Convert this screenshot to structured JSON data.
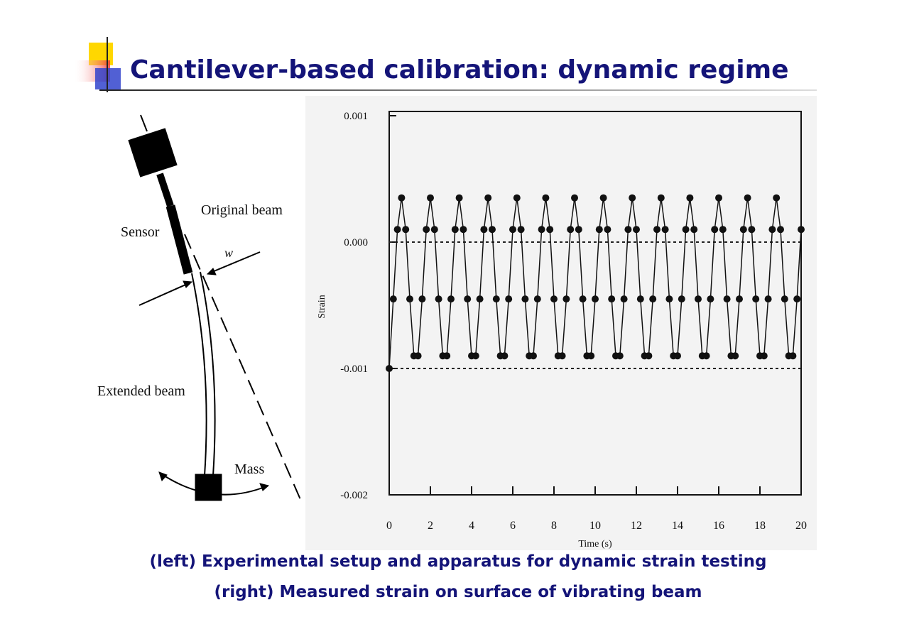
{
  "header": {
    "title": "Cantilever-based calibration: dynamic regime"
  },
  "diagram": {
    "labels": {
      "original_beam": "Original beam",
      "sensor": "Sensor",
      "w": "w",
      "extended_beam": "Extended beam",
      "mass": "Mass"
    }
  },
  "chart_data": {
    "type": "line",
    "y_label": "Strain",
    "x_label": "Time (s)",
    "xlim": [
      0,
      20
    ],
    "xticks": [
      0,
      2,
      4,
      6,
      8,
      10,
      12,
      14,
      16,
      18,
      20
    ],
    "ylim": [
      -0.002,
      0.001
    ],
    "yticks": [
      -0.002,
      -0.001,
      {
        "value": 0,
        "label": "0.000"
      },
      0.001
    ],
    "hlines": [
      0,
      -0.001
    ],
    "color": "#111111",
    "x": [
      0,
      0.2,
      0.4,
      0.6,
      0.8,
      1,
      1.2,
      1.4,
      1.6,
      1.8,
      2,
      2.2,
      2.4,
      2.6,
      2.8,
      3,
      3.2,
      3.4,
      3.6,
      3.8,
      4,
      4.2,
      4.4,
      4.6,
      4.8,
      5,
      5.2,
      5.4,
      5.6,
      5.8,
      6,
      6.2,
      6.4,
      6.6,
      6.8,
      7,
      7.2,
      7.4,
      7.6,
      7.8,
      8,
      8.2,
      8.4,
      8.6,
      8.8,
      9,
      9.2,
      9.4,
      9.6,
      9.8,
      10,
      10.2,
      10.4,
      10.6,
      10.8,
      11,
      11.2,
      11.4,
      11.6,
      11.8,
      12,
      12.2,
      12.4,
      12.6,
      12.8,
      13,
      13.2,
      13.4,
      13.6,
      13.8,
      14,
      14.2,
      14.4,
      14.6,
      14.8,
      15,
      15.2,
      15.4,
      15.6,
      15.8,
      16,
      16.2,
      16.4,
      16.6,
      16.8,
      17,
      17.2,
      17.4,
      17.6,
      17.8,
      18,
      18.2,
      18.4,
      18.6,
      18.8,
      19,
      19.2,
      19.4,
      19.6,
      19.8,
      20
    ],
    "values": [
      -0.001,
      -0.00045,
      0.0001,
      0.00035,
      0.0001,
      -0.00045,
      -0.0009,
      -0.0009,
      -0.00045,
      0.0001,
      0.00035,
      0.0001,
      -0.00045,
      -0.0009,
      -0.0009,
      -0.00045,
      0.0001,
      0.00035,
      0.0001,
      -0.00045,
      -0.0009,
      -0.0009,
      -0.00045,
      0.0001,
      0.00035,
      0.0001,
      -0.00045,
      -0.0009,
      -0.0009,
      -0.00045,
      0.0001,
      0.00035,
      0.0001,
      -0.00045,
      -0.0009,
      -0.0009,
      -0.00045,
      0.0001,
      0.00035,
      0.0001,
      -0.00045,
      -0.0009,
      -0.0009,
      -0.00045,
      0.0001,
      0.00035,
      0.0001,
      -0.00045,
      -0.0009,
      -0.0009,
      -0.00045,
      0.0001,
      0.00035,
      0.0001,
      -0.00045,
      -0.0009,
      -0.0009,
      -0.00045,
      0.0001,
      0.00035,
      0.0001,
      -0.00045,
      -0.0009,
      -0.0009,
      -0.00045,
      0.0001,
      0.00035,
      0.0001,
      -0.00045,
      -0.0009,
      -0.0009,
      -0.00045,
      0.0001,
      0.00035,
      0.0001,
      -0.00045,
      -0.0009,
      -0.0009,
      -0.00045,
      0.0001,
      0.00035,
      0.0001,
      -0.00045,
      -0.0009,
      -0.0009,
      -0.00045,
      0.0001,
      0.00035,
      0.0001,
      -0.00045,
      -0.0009,
      -0.0009,
      -0.00045,
      0.0001,
      0.00035,
      0.0001,
      -0.00045,
      -0.0009,
      -0.0009,
      -0.00045,
      0.0001
    ]
  },
  "captions": [
    "(left) Experimental setup and apparatus for dynamic strain testing",
    "(right) Measured strain on surface of vibrating beam"
  ]
}
